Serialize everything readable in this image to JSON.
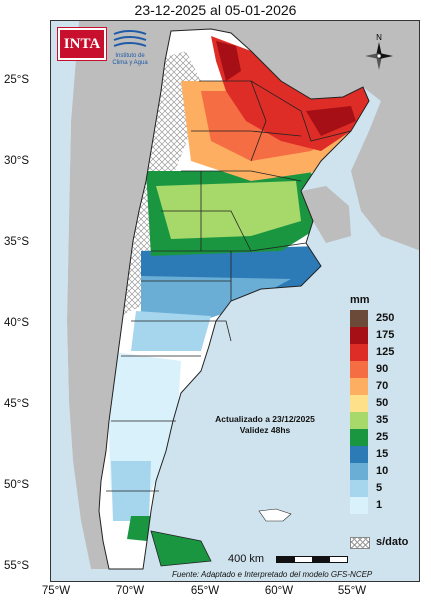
{
  "title": "23-12-2025 al 05-01-2026",
  "logos": {
    "inta": "INTA",
    "ica_line1": "Instituto de",
    "ica_line2": "Clima y Agua"
  },
  "compass_label": "N",
  "lat_labels": [
    "25°S",
    "30°S",
    "35°S",
    "40°S",
    "45°S",
    "50°S",
    "55°S"
  ],
  "lon_labels": [
    "75°W",
    "70°W",
    "65°W",
    "60°W",
    "55°W"
  ],
  "update": {
    "line1": "Actualizado a 23/12/2025",
    "line2": "Validez 48hs"
  },
  "legend": {
    "unit": "mm",
    "items": [
      {
        "label": "250",
        "color": "#6b4a3a"
      },
      {
        "label": "175",
        "color": "#a50f15"
      },
      {
        "label": "125",
        "color": "#de2d26"
      },
      {
        "label": "90",
        "color": "#f46d43"
      },
      {
        "label": "70",
        "color": "#fdae61"
      },
      {
        "label": "50",
        "color": "#fee08b"
      },
      {
        "label": "35",
        "color": "#a6d96a"
      },
      {
        "label": "25",
        "color": "#1a9641"
      },
      {
        "label": "15",
        "color": "#2c7bb6"
      },
      {
        "label": "10",
        "color": "#6aaed6"
      },
      {
        "label": "5",
        "color": "#a6d5ee"
      },
      {
        "label": "1",
        "color": "#d9f1fb"
      }
    ],
    "nodata_label": "s/dato"
  },
  "scale": {
    "label": "400 km"
  },
  "source": "Fuente: Adaptado e Interpretado del modelo GFS-NCEP",
  "colors": {
    "ocean": "#cfe3ee",
    "neighbors": "#b9b9b9",
    "land_dry": "#ffffff"
  }
}
